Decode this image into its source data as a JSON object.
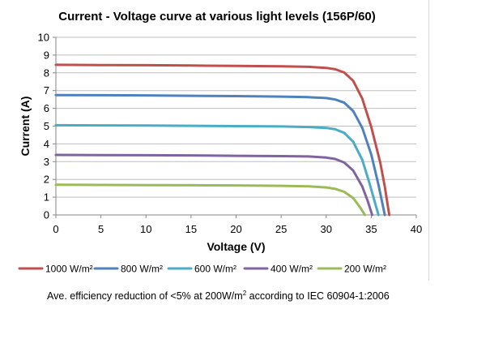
{
  "chart_data": {
    "type": "line",
    "title": "Current - Voltage curve at various light levels (156P/60)",
    "xlabel": "Voltage (V)",
    "ylabel": "Current (A)",
    "xlim": [
      0,
      40
    ],
    "ylim": [
      0,
      10
    ],
    "xticks": [
      "0",
      "5",
      "10",
      "15",
      "20",
      "25",
      "30",
      "35",
      "40"
    ],
    "yticks": [
      "0",
      "1",
      "2",
      "3",
      "4",
      "5",
      "6",
      "7",
      "8",
      "9",
      "10"
    ],
    "grid": true,
    "legend_position": "bottom",
    "series": [
      {
        "name": "1000 W/m²",
        "color": "#c0504d",
        "points": [
          [
            0,
            8.45
          ],
          [
            5,
            8.44
          ],
          [
            10,
            8.43
          ],
          [
            15,
            8.41
          ],
          [
            20,
            8.39
          ],
          [
            25,
            8.37
          ],
          [
            28,
            8.34
          ],
          [
            30,
            8.28
          ],
          [
            31,
            8.2
          ],
          [
            32,
            8.02
          ],
          [
            33,
            7.55
          ],
          [
            34,
            6.55
          ],
          [
            35,
            4.95
          ],
          [
            36,
            2.95
          ],
          [
            36.5,
            1.6
          ],
          [
            37,
            0
          ]
        ]
      },
      {
        "name": "800 W/m²",
        "color": "#4f81bd",
        "points": [
          [
            0,
            6.75
          ],
          [
            5,
            6.74
          ],
          [
            10,
            6.73
          ],
          [
            15,
            6.71
          ],
          [
            20,
            6.69
          ],
          [
            25,
            6.66
          ],
          [
            28,
            6.63
          ],
          [
            30,
            6.58
          ],
          [
            31,
            6.5
          ],
          [
            32,
            6.32
          ],
          [
            33,
            5.85
          ],
          [
            34,
            4.9
          ],
          [
            35,
            3.4
          ],
          [
            35.8,
            1.7
          ],
          [
            36.5,
            0
          ]
        ]
      },
      {
        "name": "600 W/m²",
        "color": "#4bacc6",
        "points": [
          [
            0,
            5.05
          ],
          [
            5,
            5.04
          ],
          [
            10,
            5.03
          ],
          [
            15,
            5.02
          ],
          [
            20,
            5.0
          ],
          [
            25,
            4.98
          ],
          [
            28,
            4.95
          ],
          [
            30,
            4.9
          ],
          [
            31,
            4.82
          ],
          [
            32,
            4.62
          ],
          [
            33,
            4.12
          ],
          [
            34,
            3.1
          ],
          [
            34.8,
            1.8
          ],
          [
            35.3,
            0.9
          ],
          [
            35.8,
            0
          ]
        ]
      },
      {
        "name": "400 W/m²",
        "color": "#8064a2",
        "points": [
          [
            0,
            3.38
          ],
          [
            5,
            3.37
          ],
          [
            10,
            3.36
          ],
          [
            15,
            3.35
          ],
          [
            20,
            3.33
          ],
          [
            25,
            3.31
          ],
          [
            28,
            3.29
          ],
          [
            30,
            3.23
          ],
          [
            31,
            3.15
          ],
          [
            32,
            2.95
          ],
          [
            33,
            2.5
          ],
          [
            34,
            1.6
          ],
          [
            34.6,
            0.8
          ],
          [
            35.1,
            0
          ]
        ]
      },
      {
        "name": "200 W/m²",
        "color": "#9bbb59",
        "points": [
          [
            0,
            1.7
          ],
          [
            5,
            1.69
          ],
          [
            10,
            1.68
          ],
          [
            15,
            1.67
          ],
          [
            20,
            1.66
          ],
          [
            25,
            1.64
          ],
          [
            28,
            1.61
          ],
          [
            30,
            1.55
          ],
          [
            31,
            1.47
          ],
          [
            32,
            1.3
          ],
          [
            33,
            0.95
          ],
          [
            33.8,
            0.4
          ],
          [
            34.3,
            0
          ]
        ]
      }
    ]
  },
  "footnote": {
    "part1": "Ave",
    "part2": ". efficiency reduction of <5% at 200W/m",
    "sup": "2",
    "part3": " according to ",
    "part4": "I",
    "part5": "EC 60904-1:2006"
  }
}
